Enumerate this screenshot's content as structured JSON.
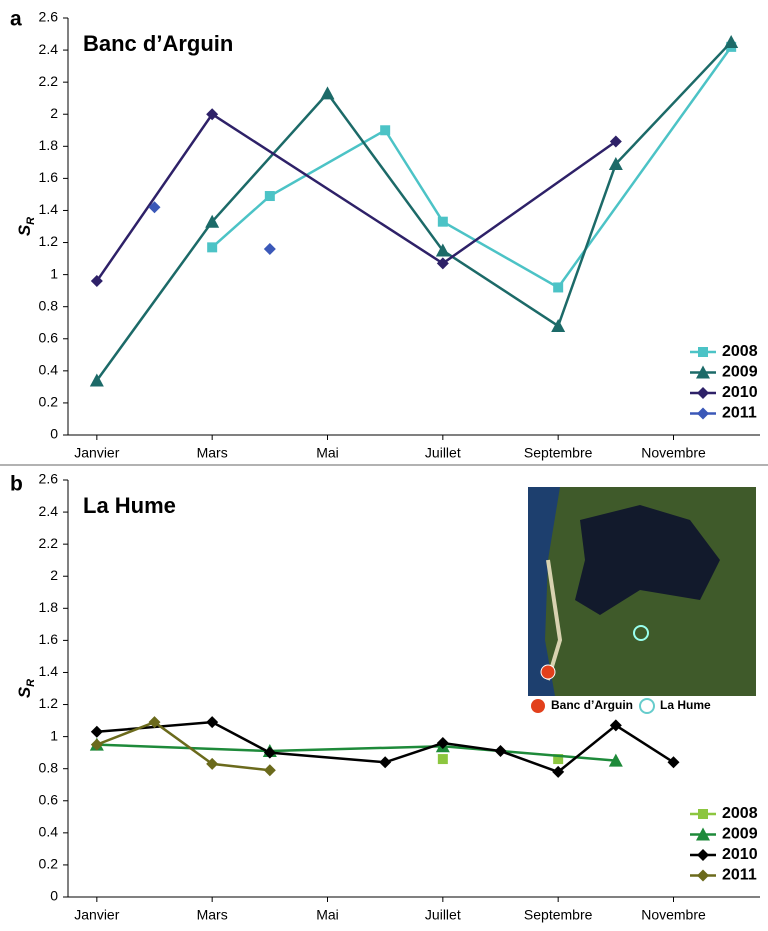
{
  "chart_data": [
    {
      "type": "line",
      "panel_label": "a",
      "title": "Banc d’Arguin",
      "y_label": {
        "text": "S",
        "subscript": "R"
      },
      "xlim": [
        0.5,
        12.5
      ],
      "xticks": [
        {
          "value": 1,
          "label": "Janvier"
        },
        {
          "value": 3,
          "label": "Mars"
        },
        {
          "value": 5,
          "label": "Mai"
        },
        {
          "value": 7,
          "label": "Juillet"
        },
        {
          "value": 9,
          "label": "Septembre"
        },
        {
          "value": 11,
          "label": "Novembre"
        }
      ],
      "ylim": [
        0,
        2.6
      ],
      "yticks": [
        0,
        0.2,
        0.4,
        0.6,
        0.8,
        1,
        1.2,
        1.4,
        1.6,
        1.8,
        2,
        2.2,
        2.4,
        2.6
      ],
      "legend": "lower right",
      "series": [
        {
          "name": "2008",
          "color": "#4cc3c6",
          "marker": "square",
          "line": true,
          "x": [
            3,
            4,
            6,
            7,
            9,
            12
          ],
          "values": [
            1.17,
            1.49,
            1.9,
            1.33,
            0.92,
            2.42
          ]
        },
        {
          "name": "2009",
          "color": "#1c6a68",
          "marker": "triangle",
          "line": true,
          "x": [
            1,
            3,
            5,
            7,
            9,
            10,
            12
          ],
          "values": [
            0.34,
            1.33,
            2.13,
            1.15,
            0.68,
            1.69,
            2.45
          ]
        },
        {
          "name": "2010",
          "color": "#2e2168",
          "marker": "diamond",
          "line": true,
          "x": [
            1,
            3,
            7,
            10
          ],
          "values": [
            0.96,
            2.0,
            1.07,
            1.83
          ]
        },
        {
          "name": "2011",
          "color": "#3b58b8",
          "marker": "diamond",
          "line": false,
          "x": [
            2,
            4
          ],
          "values": [
            1.42,
            1.16
          ]
        }
      ]
    },
    {
      "type": "line",
      "panel_label": "b",
      "title": "La Hume",
      "y_label": {
        "text": "S",
        "subscript": "R"
      },
      "xlim": [
        0.5,
        12.5
      ],
      "xticks": [
        {
          "value": 1,
          "label": "Janvier"
        },
        {
          "value": 3,
          "label": "Mars"
        },
        {
          "value": 5,
          "label": "Mai"
        },
        {
          "value": 7,
          "label": "Juillet"
        },
        {
          "value": 9,
          "label": "Septembre"
        },
        {
          "value": 11,
          "label": "Novembre"
        }
      ],
      "ylim": [
        0,
        2.6
      ],
      "yticks": [
        0,
        0.2,
        0.4,
        0.6,
        0.8,
        1,
        1.2,
        1.4,
        1.6,
        1.8,
        2,
        2.2,
        2.4,
        2.6
      ],
      "legend": "lower right",
      "inset": {
        "labels": [
          "Banc d’Arguin",
          "La Hume"
        ]
      },
      "series": [
        {
          "name": "2008",
          "color": "#8cc63f",
          "marker": "square",
          "line": false,
          "x": [
            7,
            9
          ],
          "values": [
            0.86,
            0.86
          ]
        },
        {
          "name": "2009",
          "color": "#1e8a3a",
          "marker": "triangle",
          "line": true,
          "x": [
            1,
            4,
            7,
            10
          ],
          "values": [
            0.95,
            0.91,
            0.94,
            0.85
          ]
        },
        {
          "name": "2010",
          "color": "#000000",
          "marker": "diamond",
          "line": true,
          "x": [
            1,
            3,
            4,
            6,
            7,
            8,
            9,
            10,
            11
          ],
          "values": [
            1.03,
            1.09,
            0.9,
            0.84,
            0.96,
            0.91,
            0.78,
            1.07,
            0.84
          ]
        },
        {
          "name": "2011",
          "color": "#6b6a1c",
          "marker": "diamond",
          "line": true,
          "x": [
            1,
            2,
            3,
            4
          ],
          "values": [
            0.95,
            1.09,
            0.83,
            0.79
          ]
        }
      ]
    }
  ]
}
